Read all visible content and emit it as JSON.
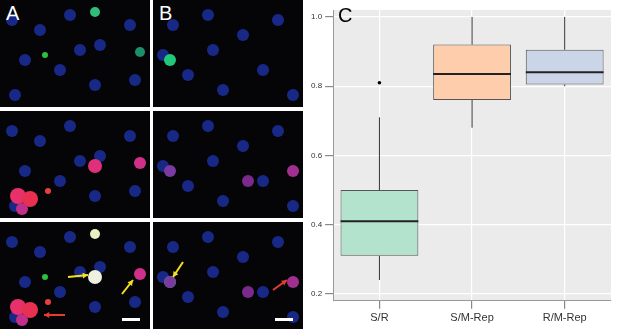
{
  "panels": [
    {
      "label": "A"
    },
    {
      "label": "B"
    }
  ],
  "chart_data": {
    "type": "boxplot",
    "panel_label": "C",
    "categories": [
      "S/R",
      "S/M-Rep",
      "R/M-Rep"
    ],
    "boxes": [
      {
        "min": 0.24,
        "q1": 0.31,
        "median": 0.41,
        "q3": 0.5,
        "max": 0.71,
        "outliers": [
          0.81
        ]
      },
      {
        "min": 0.68,
        "q1": 0.76,
        "median": 0.835,
        "q3": 0.92,
        "max": 1.0,
        "outliers": []
      },
      {
        "min": 0.8,
        "q1": 0.805,
        "median": 0.84,
        "q3": 0.905,
        "max": 1.0,
        "outliers": []
      }
    ],
    "colors": [
      "#b3e2cd",
      "#fdcdac",
      "#cbd5e8"
    ],
    "ylim": [
      0.18,
      1.02
    ],
    "yticks": [
      0.2,
      0.4,
      0.6,
      0.8,
      {
        "value": 1.0,
        "label": "1.0"
      }
    ],
    "grid": true
  }
}
